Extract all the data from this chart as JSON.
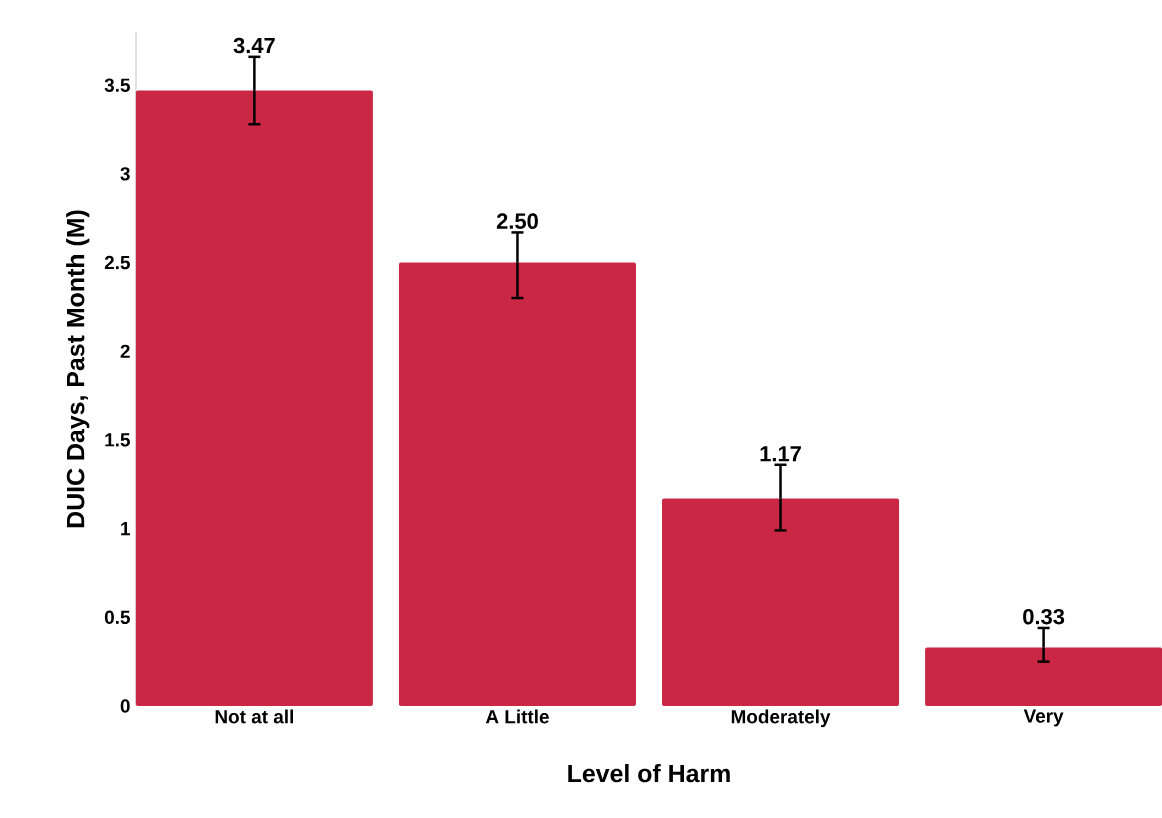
{
  "chart_data": {
    "type": "bar",
    "xlabel": "Level of Harm",
    "ylabel": "DUIC Days, Past Month (M)",
    "categories": [
      "Not at all",
      "A Little",
      "Moderately",
      "Very"
    ],
    "values": [
      3.47,
      2.5,
      1.17,
      0.33
    ],
    "value_labels": [
      "3.47",
      "2.50",
      "1.17",
      "0.33"
    ],
    "errors": [
      [
        3.28,
        3.66
      ],
      [
        2.3,
        2.67
      ],
      [
        0.99,
        1.36
      ],
      [
        0.25,
        0.44
      ]
    ],
    "color": "#c92744",
    "ylim": [
      0,
      3.8
    ],
    "yticks": [
      0,
      0.5,
      1,
      1.5,
      2,
      2.5,
      3,
      3.5
    ],
    "grid": false
  }
}
